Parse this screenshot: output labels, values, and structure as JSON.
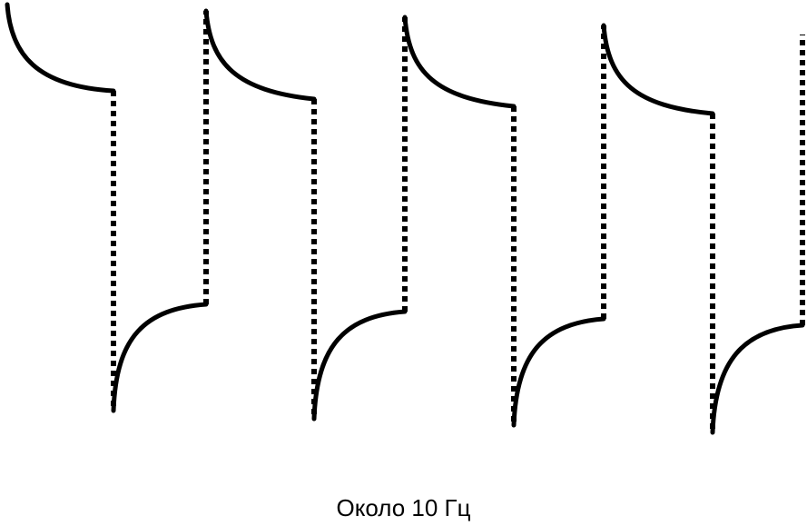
{
  "caption": "Около 10 Гц",
  "colors": {
    "stroke": "#000000",
    "background": "#ffffff"
  }
}
